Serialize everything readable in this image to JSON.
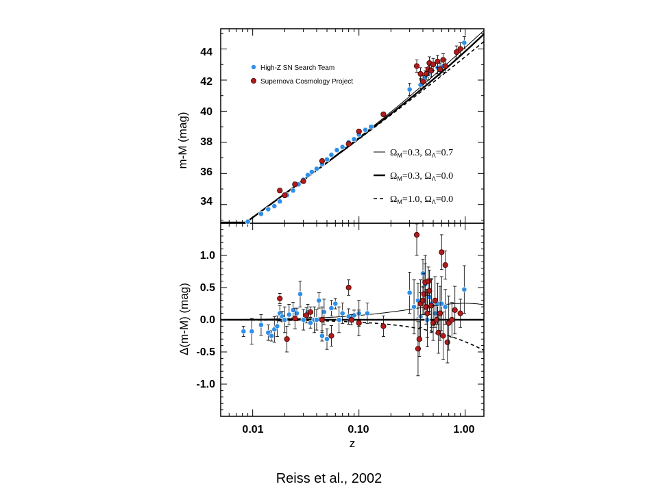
{
  "caption": "Reiss et al., 2002",
  "colors": {
    "high_z": "#2f8fe8",
    "scp": "#b01c1c",
    "scp_edge": "#3a0000"
  },
  "chart_data": [
    {
      "type": "scatter",
      "xscale": "log",
      "xlim": [
        0.005,
        1.5
      ],
      "ylim": [
        32.8,
        45.3
      ],
      "ylabel": "m-M (mag)",
      "yticks": [
        "34",
        "36",
        "38",
        "40",
        "42",
        "44"
      ],
      "legend": [
        {
          "label": "High-Z SN Search Team",
          "color": "#2f8fe8"
        },
        {
          "label": "Supernova Cosmology Project",
          "color": "#b01c1c"
        }
      ],
      "models": [
        {
          "OmegaM": "0.3",
          "OmegaL": "0.7",
          "style": "thin"
        },
        {
          "OmegaM": "0.3",
          "OmegaL": "0.0",
          "style": "thick"
        },
        {
          "OmegaM": "1.0",
          "OmegaL": "0.0",
          "style": "dashed"
        }
      ],
      "series": [
        {
          "name": "High-Z SN Search Team",
          "points": [
            [
              0.009,
              32.9
            ],
            [
              0.012,
              33.4
            ],
            [
              0.014,
              33.7
            ],
            [
              0.016,
              33.9
            ],
            [
              0.018,
              34.2
            ],
            [
              0.021,
              34.6
            ],
            [
              0.024,
              34.9
            ],
            [
              0.027,
              35.3
            ],
            [
              0.03,
              35.6
            ],
            [
              0.033,
              35.9
            ],
            [
              0.036,
              36.1
            ],
            [
              0.04,
              36.3
            ],
            [
              0.045,
              36.6
            ],
            [
              0.05,
              36.9
            ],
            [
              0.055,
              37.2
            ],
            [
              0.062,
              37.5
            ],
            [
              0.07,
              37.7
            ],
            [
              0.08,
              38.0
            ],
            [
              0.09,
              38.2
            ],
            [
              0.1,
              38.5
            ],
            [
              0.115,
              38.8
            ],
            [
              0.13,
              39.0
            ],
            [
              0.3,
              41.4
            ],
            [
              0.38,
              41.7
            ],
            [
              0.42,
              42.2
            ],
            [
              0.45,
              42.4
            ],
            [
              0.48,
              42.6
            ],
            [
              0.55,
              42.8
            ],
            [
              0.62,
              42.9
            ],
            [
              0.98,
              44.4
            ]
          ]
        },
        {
          "name": "Supernova Cosmology Project",
          "points": [
            [
              0.018,
              34.9
            ],
            [
              0.02,
              34.6
            ],
            [
              0.025,
              35.3
            ],
            [
              0.03,
              35.5
            ],
            [
              0.045,
              36.8
            ],
            [
              0.08,
              37.9
            ],
            [
              0.1,
              38.7
            ],
            [
              0.17,
              39.8
            ],
            [
              0.35,
              42.9
            ],
            [
              0.38,
              42.4
            ],
            [
              0.4,
              41.9
            ],
            [
              0.43,
              42.4
            ],
            [
              0.45,
              42.7
            ],
            [
              0.46,
              43.1
            ],
            [
              0.48,
              42.6
            ],
            [
              0.5,
              43.0
            ],
            [
              0.55,
              43.2
            ],
            [
              0.58,
              42.7
            ],
            [
              0.62,
              43.3
            ],
            [
              0.65,
              42.9
            ],
            [
              0.83,
              43.8
            ],
            [
              0.9,
              44.0
            ]
          ]
        }
      ]
    },
    {
      "type": "scatter",
      "xscale": "log",
      "xlim": [
        0.005,
        1.5
      ],
      "ylim": [
        -1.5,
        1.5
      ],
      "xlabel": "z",
      "ylabel": "Δ(m-M) (mag)",
      "yticks": [
        "1.0",
        "0.5",
        "0.0",
        "-0.5",
        "-1.0"
      ],
      "xticks": [
        "0.01",
        "0.10",
        "1.00"
      ],
      "series": [
        {
          "name": "High-Z SN Search Team",
          "points": [
            [
              0.0082,
              -0.18
            ],
            [
              0.0098,
              -0.18
            ],
            [
              0.012,
              -0.08
            ],
            [
              0.014,
              -0.2
            ],
            [
              0.015,
              -0.25
            ],
            [
              0.016,
              -0.15
            ],
            [
              0.017,
              -0.1
            ],
            [
              0.018,
              0.1
            ],
            [
              0.019,
              0.05
            ],
            [
              0.02,
              0.0
            ],
            [
              0.022,
              0.08
            ],
            [
              0.024,
              0.15
            ],
            [
              0.026,
              0.1
            ],
            [
              0.028,
              0.4
            ],
            [
              0.03,
              0.0
            ],
            [
              0.033,
              0.12
            ],
            [
              0.035,
              -0.05
            ],
            [
              0.038,
              0.0
            ],
            [
              0.04,
              0.0
            ],
            [
              0.042,
              0.3
            ],
            [
              0.045,
              -0.25
            ],
            [
              0.047,
              0.12
            ],
            [
              0.05,
              -0.3
            ],
            [
              0.055,
              0.18
            ],
            [
              0.06,
              0.25
            ],
            [
              0.065,
              0.0
            ],
            [
              0.07,
              0.1
            ],
            [
              0.08,
              0.05
            ],
            [
              0.09,
              0.07
            ],
            [
              0.1,
              0.1
            ],
            [
              0.12,
              0.1
            ],
            [
              0.3,
              0.42
            ],
            [
              0.33,
              0.2
            ],
            [
              0.36,
              0.3
            ],
            [
              0.38,
              0.05
            ],
            [
              0.4,
              0.72
            ],
            [
              0.42,
              0.55
            ],
            [
              0.44,
              0.0
            ],
            [
              0.46,
              0.35
            ],
            [
              0.48,
              0.25
            ],
            [
              0.52,
              0.1
            ],
            [
              0.55,
              0.25
            ],
            [
              0.6,
              0.25
            ],
            [
              0.65,
              0.2
            ],
            [
              0.98,
              0.47
            ]
          ]
        },
        {
          "name": "Supernova Cosmology Project",
          "points": [
            [
              0.018,
              0.33
            ],
            [
              0.021,
              -0.3
            ],
            [
              0.025,
              0.02
            ],
            [
              0.032,
              0.07
            ],
            [
              0.035,
              0.12
            ],
            [
              0.045,
              0.0
            ],
            [
              0.055,
              -0.25
            ],
            [
              0.08,
              0.5
            ],
            [
              0.085,
              0.0
            ],
            [
              0.1,
              -0.05
            ],
            [
              0.17,
              -0.1
            ],
            [
              0.35,
              1.32
            ],
            [
              0.36,
              -0.45
            ],
            [
              0.37,
              -0.3
            ],
            [
              0.38,
              0.25
            ],
            [
              0.4,
              0.3
            ],
            [
              0.41,
              0.4
            ],
            [
              0.42,
              0.58
            ],
            [
              0.43,
              0.2
            ],
            [
              0.44,
              0.1
            ],
            [
              0.45,
              0.6
            ],
            [
              0.46,
              0.45
            ],
            [
              0.48,
              0.22
            ],
            [
              0.5,
              -0.05
            ],
            [
              0.52,
              0.3
            ],
            [
              0.54,
              0.0
            ],
            [
              0.56,
              -0.2
            ],
            [
              0.58,
              0.1
            ],
            [
              0.6,
              1.05
            ],
            [
              0.62,
              -0.25
            ],
            [
              0.65,
              0.85
            ],
            [
              0.68,
              -0.35
            ],
            [
              0.7,
              -0.05
            ],
            [
              0.75,
              0.0
            ],
            [
              0.8,
              0.15
            ],
            [
              0.9,
              0.1
            ]
          ]
        }
      ]
    }
  ]
}
